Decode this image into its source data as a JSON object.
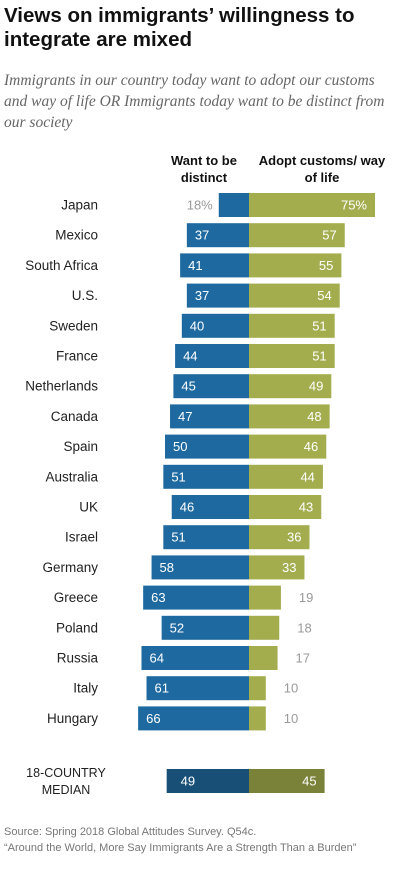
{
  "title": "Views on immigrants’ willingness to integrate are mixed",
  "subtitle": "Immigrants in our country today want to adopt our customs and way of life OR Immigrants today want to be distinct from our society",
  "left_header": "Want to be distinct",
  "right_header": "Adopt customs/ way of life",
  "source": "Source: Spring 2018 Global Attitudes Survey. Q54c.",
  "report": "“Around the World, More Say Immigrants Are a Strength Than a Burden”",
  "colors": {
    "distinct": "#1e6aa0",
    "adopt": "#a3ad4e",
    "median_distinct": "#174f77",
    "median_adopt": "#7a8239",
    "outside_label": "#9a9a9a"
  },
  "chart_data": {
    "type": "bar",
    "categories": [
      "Japan",
      "Mexico",
      "South Africa",
      "U.S.",
      "Sweden",
      "France",
      "Netherlands",
      "Canada",
      "Spain",
      "Australia",
      "UK",
      "Israel",
      "Germany",
      "Greece",
      "Poland",
      "Russia",
      "Italy",
      "Hungary"
    ],
    "series": [
      {
        "name": "Want to be distinct",
        "values": [
          18,
          37,
          41,
          37,
          40,
          44,
          45,
          47,
          50,
          51,
          46,
          51,
          58,
          63,
          52,
          64,
          61,
          66
        ]
      },
      {
        "name": "Adopt customs/ way of life",
        "values": [
          75,
          57,
          55,
          54,
          51,
          51,
          49,
          48,
          46,
          44,
          43,
          36,
          33,
          19,
          18,
          17,
          10,
          10
        ]
      }
    ],
    "labels_distinct": [
      "18%",
      "37",
      "41",
      "37",
      "40",
      "44",
      "45",
      "47",
      "50",
      "51",
      "46",
      "51",
      "58",
      "63",
      "52",
      "64",
      "61",
      "66"
    ],
    "labels_adopt": [
      "75%",
      "57",
      "55",
      "54",
      "51",
      "51",
      "49",
      "48",
      "46",
      "44",
      "43",
      "36",
      "33",
      "19",
      "18",
      "17",
      "10",
      "10"
    ],
    "median": {
      "label_line1": "18-COUNTRY",
      "label_line2": "MEDIAN",
      "distinct": 49,
      "adopt": 45,
      "distinct_label": "49",
      "adopt_label": "45"
    },
    "xlabel": "",
    "ylabel": "",
    "legend": "column headers above bars"
  }
}
